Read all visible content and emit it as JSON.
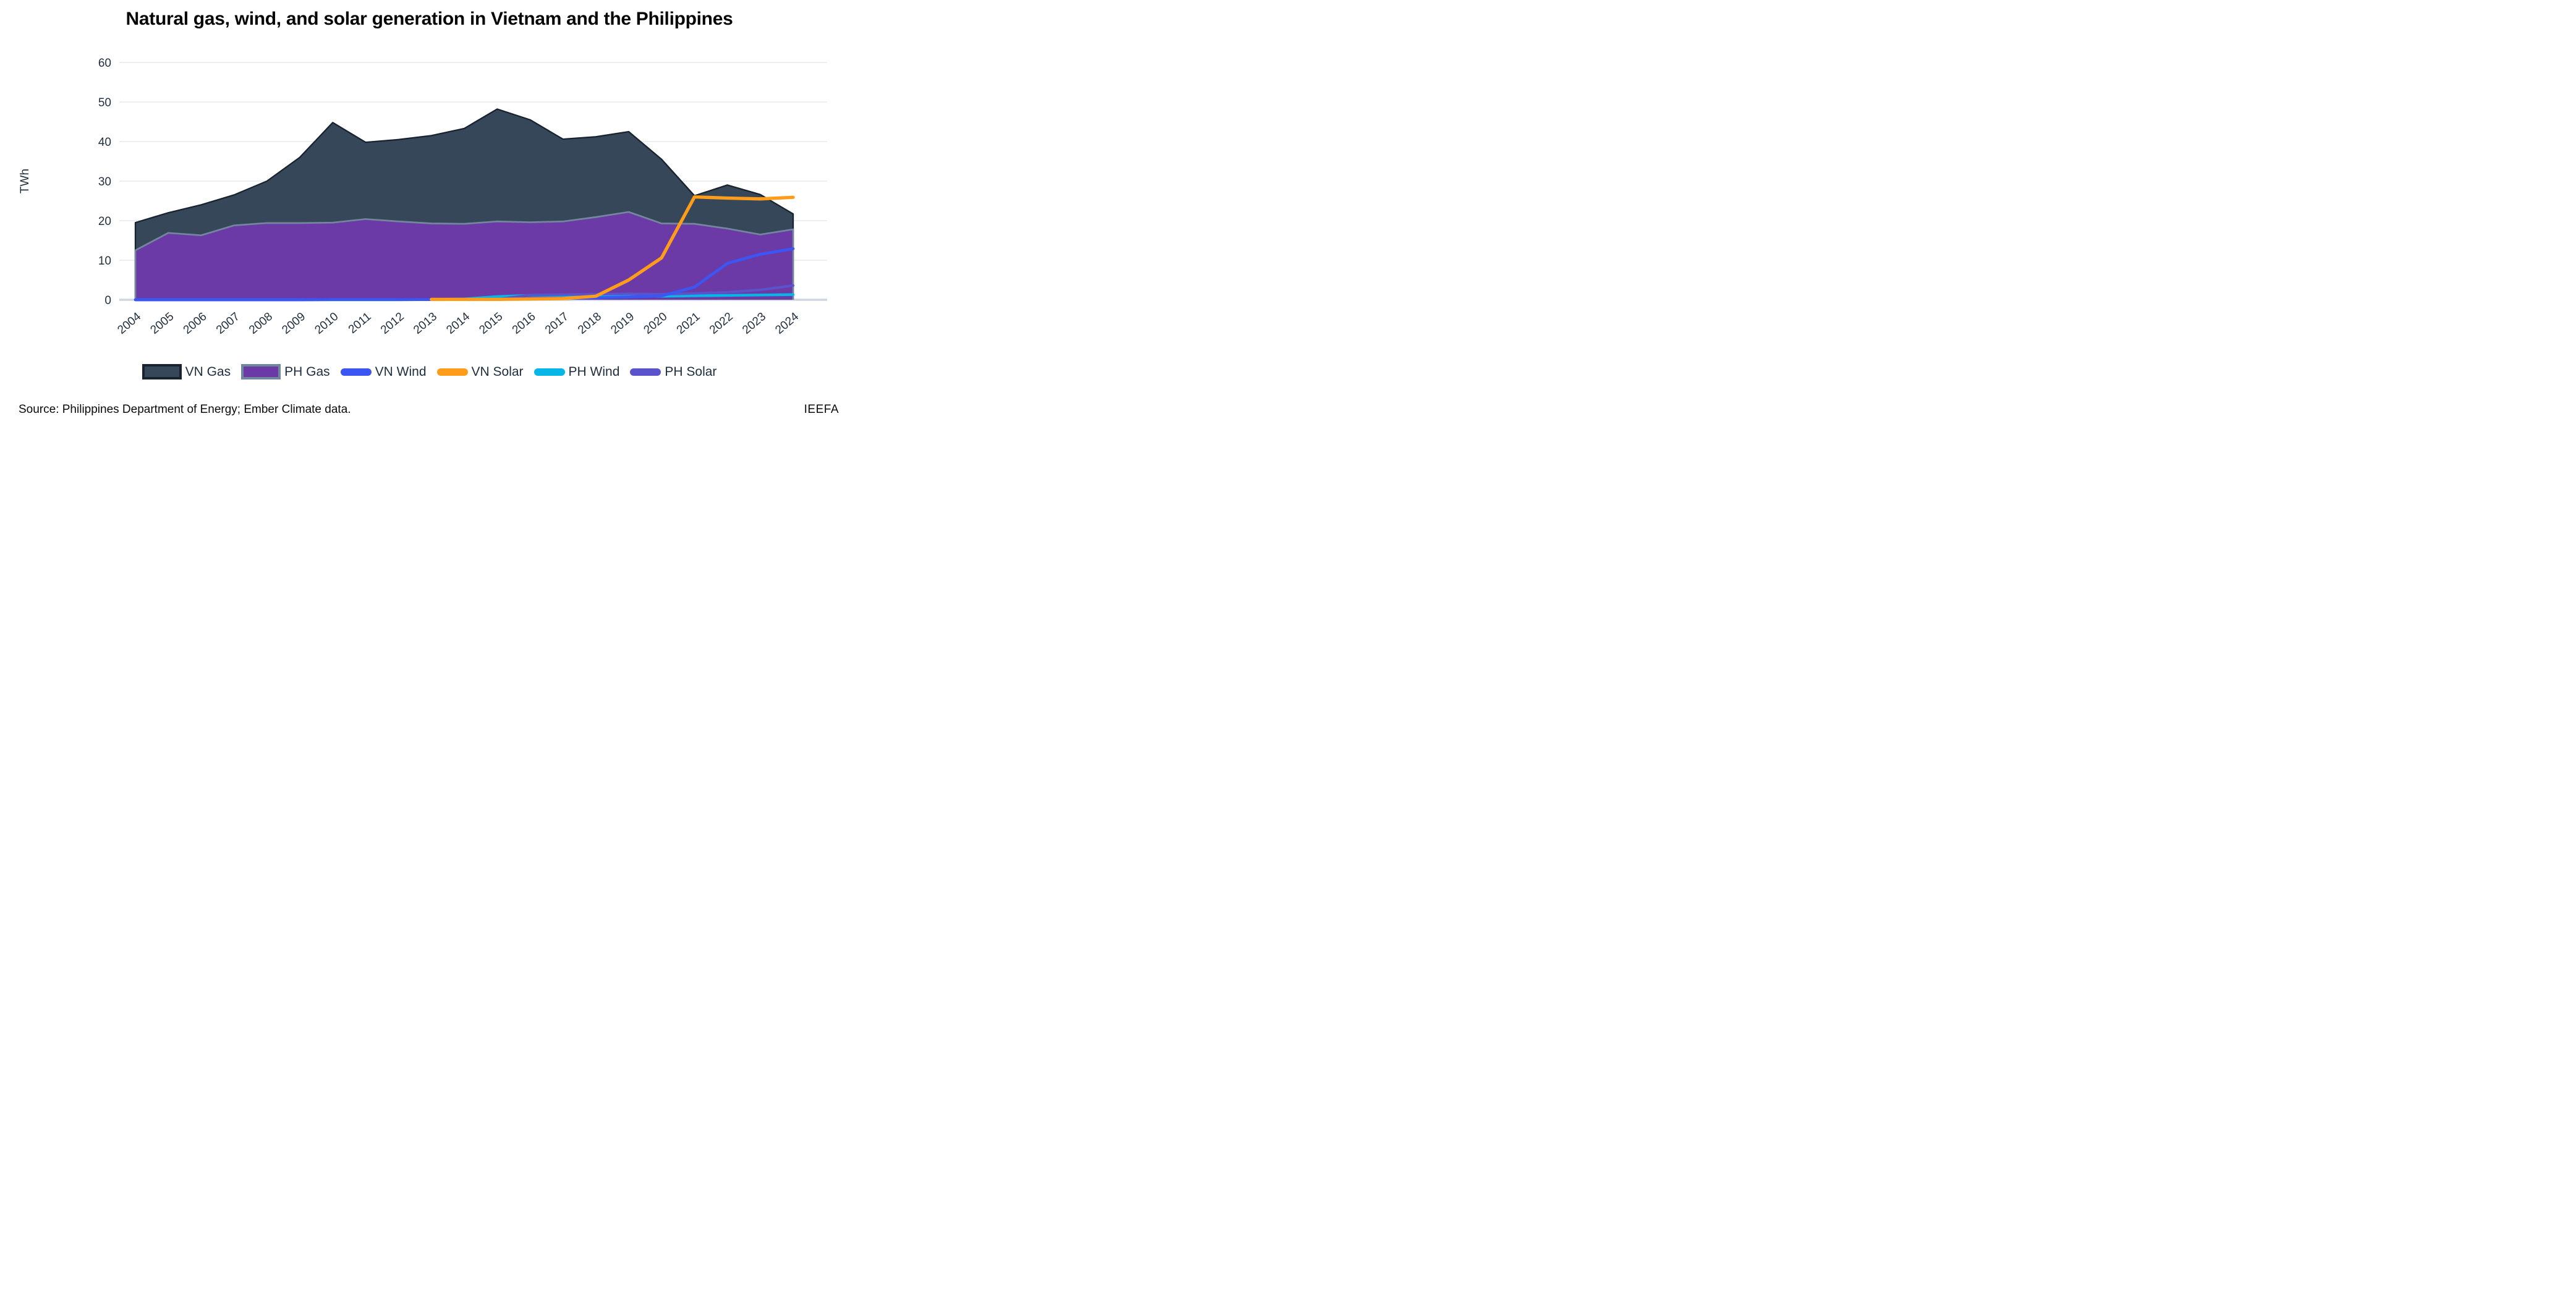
{
  "title": "Natural gas, wind, and solar generation in Vietnam and the Philippines",
  "footer": {
    "source": "Source: Philippines Department of Energy; Ember Climate data.",
    "brand": "IEEFA"
  },
  "chart_data": {
    "type": "area+line",
    "title": "Natural gas, wind, and solar generation in Vietnam and the Philippines",
    "xlabel": "",
    "ylabel": "TWh",
    "ylim": [
      0,
      60
    ],
    "yticks": [
      0,
      10,
      20,
      30,
      40,
      50,
      60
    ],
    "grid": true,
    "legend_position": "bottom",
    "x": [
      2004,
      2005,
      2006,
      2007,
      2008,
      2009,
      2010,
      2011,
      2012,
      2013,
      2014,
      2015,
      2016,
      2017,
      2018,
      2019,
      2020,
      2021,
      2022,
      2023,
      2024
    ],
    "series": [
      {
        "name": "VN Gas",
        "kind": "area",
        "fill": "#36475a",
        "stroke": "#18232f",
        "stroke_width": 2.3,
        "values": [
          19.5,
          22.0,
          24.0,
          26.5,
          30.0,
          36.0,
          44.8,
          39.8,
          40.5,
          41.5,
          43.3,
          48.2,
          45.5,
          40.6,
          41.2,
          42.5,
          35.5,
          26.3,
          29.0,
          26.6,
          21.7
        ]
      },
      {
        "name": "PH Gas",
        "kind": "area",
        "fill": "#6c3aa6",
        "stroke": "#72879e",
        "stroke_width": 2.7,
        "values": [
          12.5,
          16.9,
          16.3,
          18.8,
          19.4,
          19.4,
          19.5,
          20.4,
          19.8,
          19.3,
          19.2,
          19.8,
          19.6,
          19.8,
          20.9,
          22.2,
          19.3,
          19.2,
          18.0,
          16.5,
          17.8
        ]
      },
      {
        "name": "PH Wind",
        "kind": "line",
        "color": "#06b6e6",
        "stroke_width": 4.4,
        "values": [
          0,
          0,
          0,
          0,
          0,
          0,
          0,
          0,
          0,
          0.05,
          0.2,
          0.8,
          1.1,
          1.1,
          1.2,
          1.1,
          0.9,
          1.0,
          1.1,
          1.2,
          1.3
        ]
      },
      {
        "name": "PH Solar",
        "kind": "line",
        "color": "#5b53cb",
        "stroke_width": 4.1,
        "values": [
          0,
          0,
          0,
          0,
          0,
          0,
          0,
          0,
          0,
          0,
          0,
          0.1,
          1.2,
          1.3,
          1.4,
          1.5,
          1.4,
          1.6,
          1.9,
          2.5,
          3.6
        ]
      },
      {
        "name": "VN Wind",
        "kind": "line",
        "color": "#3b56f2",
        "stroke_width": 4.7,
        "values": [
          0,
          0,
          0,
          0,
          0,
          0,
          0.05,
          0.05,
          0.05,
          0.05,
          0.1,
          0.15,
          0.2,
          0.3,
          0.5,
          0.7,
          1.0,
          3.2,
          9.2,
          11.5,
          12.9
        ]
      },
      {
        "name": "VN Solar",
        "kind": "line",
        "color": "#ff9d1a",
        "stroke_width": 5.3,
        "values": [
          null,
          null,
          null,
          null,
          null,
          null,
          null,
          null,
          null,
          0.1,
          0.1,
          0.1,
          0.2,
          0.3,
          0.9,
          5.0,
          10.6,
          26.0,
          25.7,
          25.5,
          25.9
        ]
      }
    ],
    "legend_order": [
      "VN Gas",
      "PH Gas",
      "VN Wind",
      "VN Solar",
      "PH Wind",
      "PH Solar"
    ]
  }
}
